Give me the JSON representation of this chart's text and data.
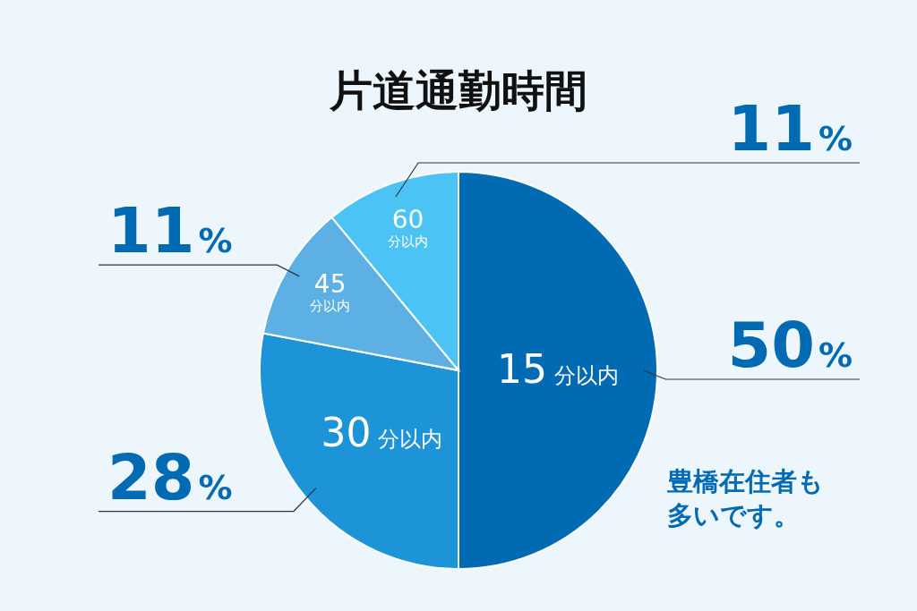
{
  "chart_data": {
    "type": "pie",
    "title": "片道通勤時間",
    "categories": [
      "15分以内",
      "30分以内",
      "45分以内",
      "60分以内"
    ],
    "values": [
      50,
      28,
      11,
      11
    ],
    "colors": [
      "#006ab2",
      "#1d93d8",
      "#5cb0e3",
      "#4cc3f5"
    ],
    "value_labels": [
      "50%",
      "28%",
      "11%",
      "11%"
    ],
    "annotations": [
      "豊橋在住者も多いです。"
    ]
  }
}
